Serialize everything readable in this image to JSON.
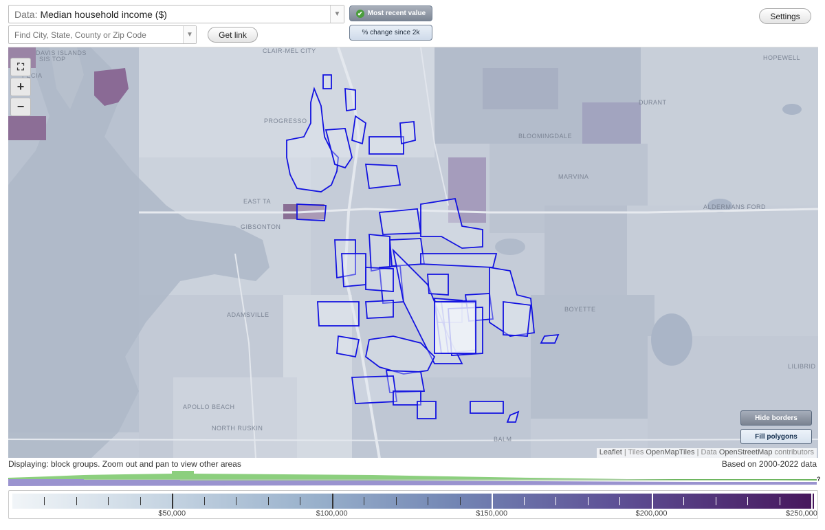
{
  "header": {
    "data_prefix": "Data:",
    "data_value": "Median household income ($)",
    "find_placeholder": "Find City, State, County or Zip Code",
    "get_link": "Get link",
    "settings": "Settings",
    "toggle_recent": "Most recent value",
    "toggle_change": "% change since 2k"
  },
  "map": {
    "zoom_in": "+",
    "zoom_out": "−",
    "places": {
      "davis_islands": "DAVIS ISLANDS",
      "clair_mel_city": "CLAIR-MEL CITY",
      "progresso": "PROGRESSO",
      "east_tampa": "EAST TA",
      "gibsonton": "GIBSONTON",
      "adamsville": "ADAMSVILLE",
      "apollo_beach": "APOLLO BEACH",
      "north_ruskin": "NORTH RUSKIN",
      "durant": "DURANT",
      "bloomingdale": "BLOOMINGDALE",
      "marvina": "MARVINA",
      "aldermans_ford": "ALDERMANS FORD",
      "boyette": "BOYETTE",
      "hopewell": "HOPEWELL",
      "balm": "BALM",
      "lilibrid": "LILIBRID",
      "sis_top": "SIS TOP",
      "pecia": "PECIA"
    },
    "hide_borders": "Hide borders",
    "fill_polygons": "Fill polygons",
    "attribution": {
      "leaflet": "Leaflet",
      "sep1": " | Tiles ",
      "tiles": "OpenMapTiles",
      "sep2": " | Data ",
      "data": "OpenStreetMap",
      "contributors": " contributors"
    }
  },
  "status": {
    "displaying": "Displaying: block groups. Zoom out and pan to view other areas",
    "based_on": "Based on 2000-2022 data"
  },
  "legend": {
    "question": "?",
    "labels": [
      "$50,000",
      "$100,000",
      "$150,000",
      "$200,000",
      "$250,000"
    ],
    "label_values": [
      50000,
      100000,
      150000,
      200000,
      250000
    ]
  },
  "colors": {
    "scale_low": "#f1f5f8",
    "scale_high": "#46165c",
    "outline": "#1010dd",
    "histogram_green": "#8ccf7e",
    "histogram_purple": "#9a93cf"
  }
}
